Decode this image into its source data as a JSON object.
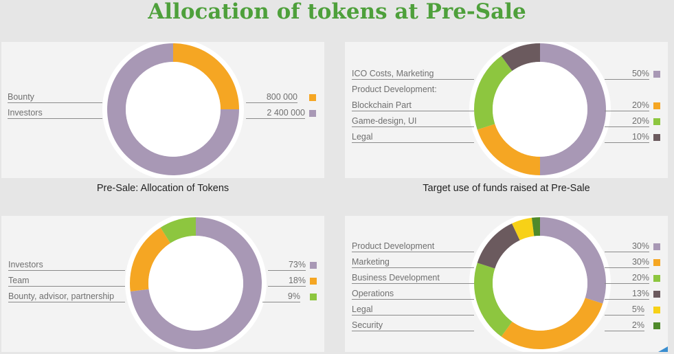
{
  "title": "Allocation of tokens at Pre-Sale",
  "colors": {
    "purple": "#a898b5",
    "orange": "#f5a623",
    "green": "#8dc63f",
    "dark": "#6b5a5e",
    "yellow": "#f7d117",
    "darkgreen": "#4f8a2b",
    "title_green": "#4ea03b"
  },
  "captions": {
    "chart1": "Pre-Sale: Allocation of Tokens",
    "chart2": "Target use of funds raised at Pre-Sale"
  },
  "chart_data": [
    {
      "type": "pie",
      "donut": true,
      "title": "Pre-Sale: Allocation of Tokens",
      "categories": [
        "Bounty",
        "Investors"
      ],
      "values": [
        800000,
        2400000
      ],
      "value_labels": [
        "800 000",
        "2 400 000"
      ],
      "colors": [
        "#f5a623",
        "#a898b5"
      ]
    },
    {
      "type": "pie",
      "donut": true,
      "title": "Target use of funds raised at Pre-Sale",
      "categories": [
        "ICO Costs, Marketing",
        "Blockchain Part",
        "Game-design, UI",
        "Legal"
      ],
      "group_label": "Product Development:",
      "values": [
        50,
        20,
        20,
        10
      ],
      "value_labels": [
        "50%",
        "20%",
        "20%",
        "10%"
      ],
      "colors": [
        "#a898b5",
        "#f5a623",
        "#8dc63f",
        "#6b5a5e"
      ]
    },
    {
      "type": "pie",
      "donut": true,
      "title": "",
      "categories": [
        "Investors",
        "Team",
        "Bounty, advisor, partnership"
      ],
      "values": [
        73,
        18,
        9
      ],
      "value_labels": [
        "73%",
        "18%",
        "9%"
      ],
      "colors": [
        "#a898b5",
        "#f5a623",
        "#8dc63f"
      ]
    },
    {
      "type": "pie",
      "donut": true,
      "title": "",
      "categories": [
        "Product Development",
        "Marketing",
        "Business Development",
        "Operations",
        "Legal",
        "Security"
      ],
      "values": [
        30,
        30,
        20,
        13,
        5,
        2
      ],
      "value_labels": [
        "30%",
        "30%",
        "20%",
        "13%",
        "5%",
        "2%"
      ],
      "colors": [
        "#a898b5",
        "#f5a623",
        "#8dc63f",
        "#6b5a5e",
        "#f7d117",
        "#4f8a2b"
      ]
    }
  ]
}
